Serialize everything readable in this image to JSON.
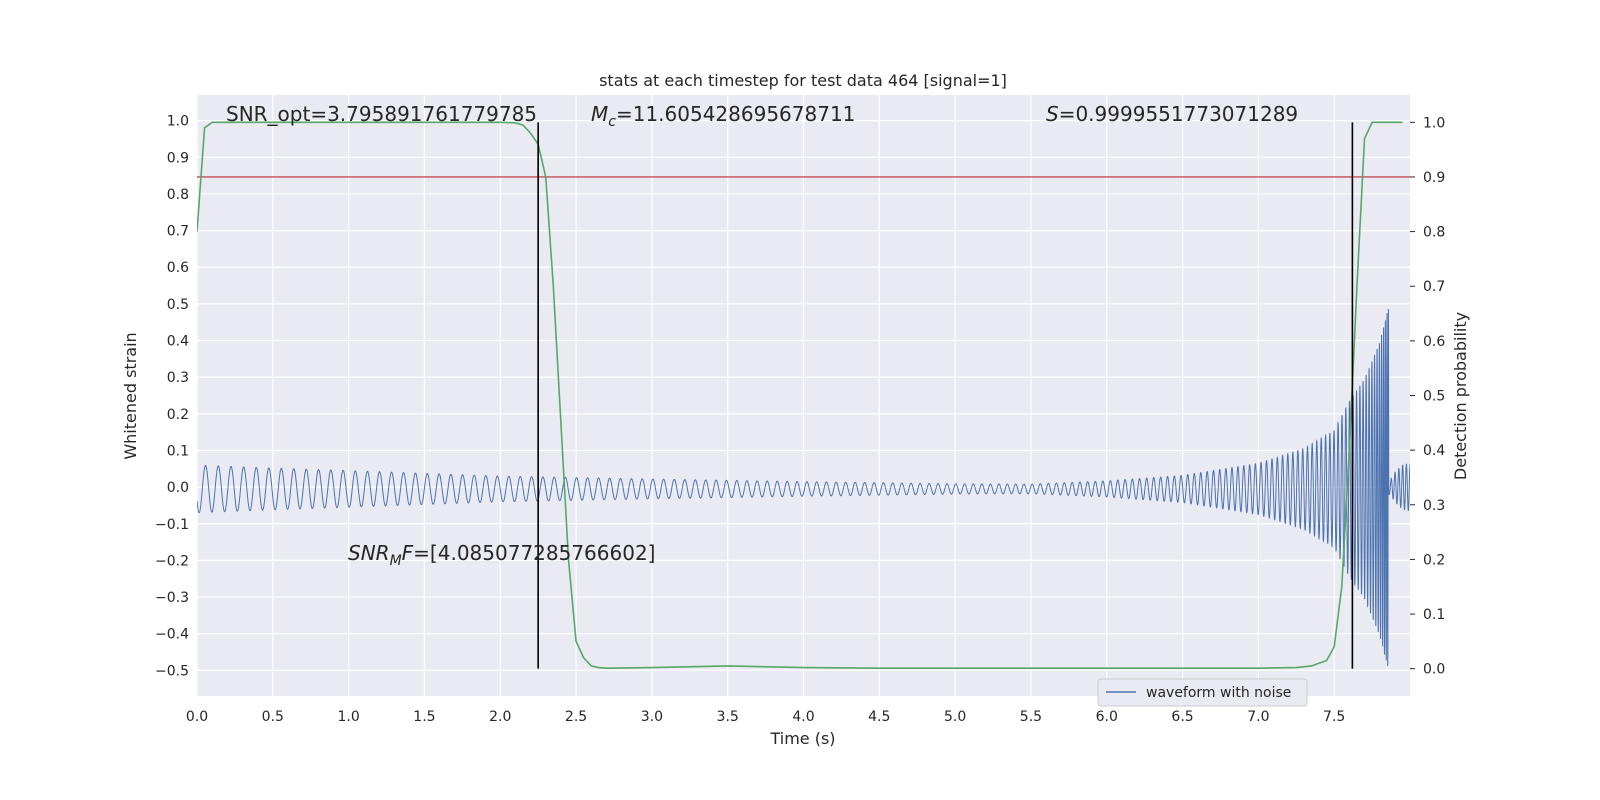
{
  "chart_data": {
    "type": "line",
    "title": "stats at each timestep for test data 464 [signal=1]",
    "xlabel": "Time (s)",
    "ylabel_left": "Whitened strain",
    "ylabel_right": "Detection probability",
    "xlim": [
      0.0,
      8.0
    ],
    "ylim_left": [
      -0.57,
      1.07
    ],
    "ylim_right": [
      -0.05,
      1.05
    ],
    "grid": true,
    "x_ticks": [
      "0.0",
      "0.5",
      "1.0",
      "1.5",
      "2.0",
      "2.5",
      "3.0",
      "3.5",
      "4.0",
      "4.5",
      "5.0",
      "5.5",
      "6.0",
      "6.5",
      "7.0",
      "7.5"
    ],
    "y_ticks_left": [
      "−0.5",
      "−0.4",
      "−0.3",
      "−0.2",
      "−0.1",
      "0.0",
      "0.1",
      "0.2",
      "0.3",
      "0.4",
      "0.5",
      "0.6",
      "0.7",
      "0.8",
      "0.9",
      "1.0"
    ],
    "y_ticks_right": [
      "0.0",
      "0.1",
      "0.2",
      "0.3",
      "0.4",
      "0.5",
      "0.6",
      "0.7",
      "0.8",
      "0.9",
      "1.0"
    ],
    "annotations": {
      "snr_opt": "SNR_opt=3.795891761779785",
      "mc_symbol": "M",
      "mc_sub": "c",
      "mc_value": "=11.605428695678711",
      "s_symbol": "S",
      "s_value": "=0.9999551773071289",
      "snr_mf_symbol": "SNR",
      "snr_mf_sub": "M",
      "snr_mf_symbol2": "F",
      "snr_mf_value": "=[4.085077285766602]"
    },
    "threshold_right": 0.9,
    "vertical_lines_x": [
      2.25,
      7.62
    ],
    "legend": {
      "placement": "lower-right",
      "entries": [
        "waveform with noise"
      ]
    },
    "series": [
      {
        "name": "waveform with noise",
        "axis": "left",
        "color": "#4c72b0",
        "kind": "chirp-envelope",
        "envelope_x": [
          0.0,
          0.5,
          1.0,
          2.0,
          3.0,
          4.0,
          5.0,
          5.5,
          6.0,
          6.5,
          7.0,
          7.3,
          7.5,
          7.6,
          7.7,
          7.8,
          7.86
        ],
        "envelope_amp": [
          0.065,
          0.057,
          0.05,
          0.035,
          0.027,
          0.02,
          0.014,
          0.013,
          0.022,
          0.037,
          0.07,
          0.11,
          0.16,
          0.24,
          0.3,
          0.4,
          0.5
        ],
        "ringdown_x": [
          7.87,
          7.9,
          7.95,
          8.0
        ],
        "ringdown_amp": [
          0.02,
          0.04,
          0.06,
          0.065
        ]
      },
      {
        "name": "detection probability",
        "axis": "right",
        "color": "#55a868",
        "x": [
          0.0,
          0.05,
          0.1,
          0.2,
          0.5,
          1.0,
          1.5,
          2.0,
          2.1,
          2.15,
          2.2,
          2.25,
          2.3,
          2.35,
          2.4,
          2.45,
          2.5,
          2.55,
          2.6,
          2.65,
          2.7,
          3.0,
          3.5,
          4.0,
          4.5,
          5.0,
          5.5,
          6.0,
          6.5,
          7.0,
          7.25,
          7.35,
          7.45,
          7.5,
          7.55,
          7.6,
          7.65,
          7.7,
          7.75,
          7.8,
          7.85,
          7.95
        ],
        "y": [
          0.8,
          0.99,
          1.0,
          1.0,
          1.0,
          1.0,
          1.0,
          1.0,
          0.999,
          0.995,
          0.98,
          0.96,
          0.9,
          0.7,
          0.45,
          0.2,
          0.05,
          0.02,
          0.005,
          0.002,
          0.001,
          0.002,
          0.005,
          0.002,
          0.001,
          0.001,
          0.001,
          0.001,
          0.001,
          0.001,
          0.002,
          0.005,
          0.015,
          0.04,
          0.15,
          0.4,
          0.7,
          0.97,
          1.0,
          1.0,
          1.0,
          1.0
        ]
      }
    ]
  },
  "colors": {
    "background": "#eaeaf2",
    "grid": "#ffffff",
    "threshold": "#c44e52",
    "vertical_line": "#000000",
    "text": "#262626"
  }
}
